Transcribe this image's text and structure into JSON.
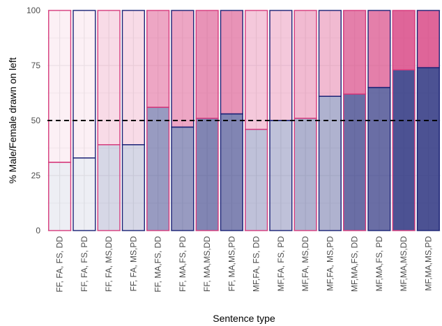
{
  "chart_data": {
    "type": "bar",
    "stacked": true,
    "xlabel": "Sentence type",
    "ylabel": "% Male/Female drawn on left",
    "ylim": [
      0,
      100
    ],
    "yticks": [
      0,
      25,
      50,
      75,
      100
    ],
    "reference_line": 50,
    "grid": true,
    "categories": [
      "FF, FA, FS, DD",
      "FF, FA, FS, PD",
      "FF, FA, MS,DD",
      "FF, FA, MS,PD",
      "FF, MA,FS, DD",
      "FF, MA,FS, PD",
      "FF, MA,MS,DD",
      "FF, MA,MS,PD",
      "MF,FA, FS, DD",
      "MF,FA, FS, PD",
      "MF,FA, MS,DD",
      "MF,FA, MS,PD",
      "MF,MA,FS, DD",
      "MF,MA,FS, PD",
      "MF,MA,MS,DD",
      "MF,MA,MS,PD"
    ],
    "series": [
      {
        "values": [
          31,
          33,
          39,
          39,
          56,
          47,
          51,
          53,
          46,
          50,
          51,
          61,
          62,
          65,
          73,
          74
        ]
      },
      {
        "values": [
          69,
          67,
          61,
          61,
          44,
          53,
          49,
          47,
          54,
          50,
          49,
          39,
          38,
          35,
          27,
          26
        ]
      }
    ],
    "lower_fill_alpha": [
      0.08,
      0.08,
      0.18,
      0.18,
      0.45,
      0.45,
      0.55,
      0.55,
      0.28,
      0.28,
      0.35,
      0.35,
      0.65,
      0.65,
      0.78,
      0.78
    ],
    "upper_fill_alpha": [
      0.08,
      0.08,
      0.18,
      0.18,
      0.45,
      0.45,
      0.55,
      0.55,
      0.28,
      0.28,
      0.35,
      0.35,
      0.65,
      0.65,
      0.78,
      0.78
    ],
    "outline": [
      "pink",
      "navy",
      "pink",
      "navy",
      "pink",
      "navy",
      "pink",
      "navy",
      "pink",
      "navy",
      "pink",
      "navy",
      "pink",
      "navy",
      "pink",
      "navy"
    ],
    "colors": {
      "male": "#1a2175",
      "female": "#d63a7c",
      "outline_pink": "#d63a7c",
      "outline_navy": "#1a2175",
      "grid": "#ebebeb",
      "reference_line": "#000000"
    }
  }
}
